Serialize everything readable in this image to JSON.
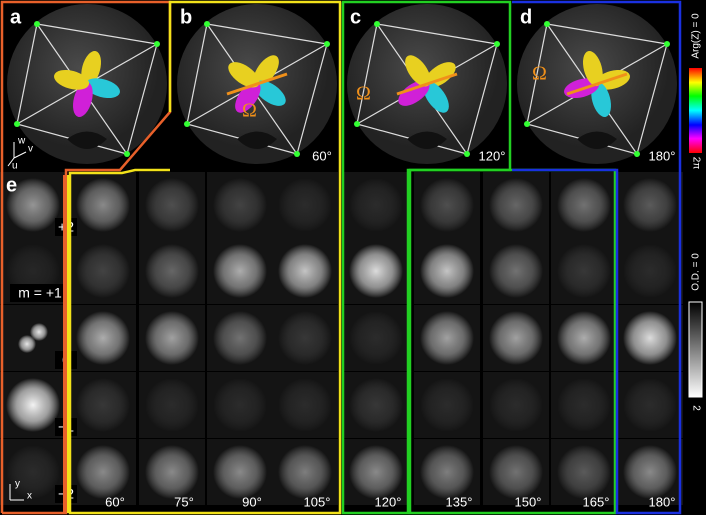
{
  "panels": [
    {
      "label": "a"
    },
    {
      "label": "b",
      "angle": "60°",
      "omega": "Ω"
    },
    {
      "label": "c",
      "angle": "120°",
      "omega": "Ω"
    },
    {
      "label": "d",
      "angle": "180°",
      "omega": "Ω"
    }
  ],
  "axes_a": [
    "w",
    "v",
    "u"
  ],
  "panel_e": {
    "label": "e",
    "m_labels": [
      "+2",
      "m = +1",
      "0",
      "−1",
      "−2"
    ],
    "angles": [
      "60°",
      "75°",
      "90°",
      "105°",
      "120°",
      "135°",
      "150°",
      "165°",
      "180°"
    ],
    "axes": [
      "y",
      "x"
    ]
  },
  "colorbars": {
    "arg_top": "Arg(Z) = 0",
    "arg_bottom": "2π",
    "od_top": "O.D. = 0",
    "od_bottom": "2"
  }
}
